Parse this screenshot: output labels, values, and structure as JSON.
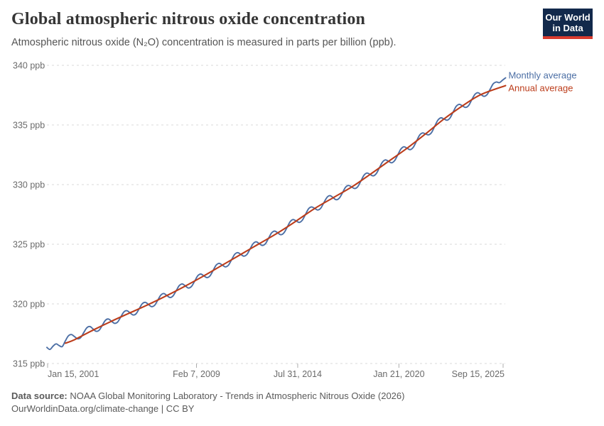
{
  "header": {
    "title": "Global atmospheric nitrous oxide concentration",
    "subtitle": "Atmospheric nitrous oxide (N₂O) concentration is measured in parts per billion (ppb).",
    "logo": {
      "line1": "Our World",
      "line2": "in Data",
      "bg_color": "#12294b",
      "accent_color": "#d93b2e"
    }
  },
  "chart_data": {
    "type": "line",
    "title": "Global atmospheric nitrous oxide concentration",
    "xlabel": "",
    "ylabel": "",
    "y_axis": {
      "unit": "ppb",
      "ticks": [
        315,
        320,
        325,
        330,
        335,
        340
      ],
      "tick_suffix": " ppb",
      "ylim": [
        315,
        340
      ],
      "grid": "dashed-horizontal"
    },
    "x_axis": {
      "ticks": [
        {
          "label": "Jan 15, 2001",
          "t": 2001.04,
          "align": "start"
        },
        {
          "label": "Feb 7, 2009",
          "t": 2009.1,
          "align": "middle"
        },
        {
          "label": "Jul 31, 2014",
          "t": 2014.58,
          "align": "middle"
        },
        {
          "label": "Jan 21, 2020",
          "t": 2020.06,
          "align": "middle"
        },
        {
          "label": "Sep 15, 2025",
          "t": 2025.7,
          "align": "end"
        }
      ],
      "xlim": [
        2001.0,
        2025.85
      ]
    },
    "legend_position": "right-of-line-ends",
    "series": [
      {
        "name": "Monthly average",
        "color": "#4c6fa5",
        "t_start": 2001.0,
        "t_step": 0.1666667,
        "values": [
          316.35,
          316.18,
          316.45,
          316.65,
          316.5,
          316.42,
          316.9,
          317.32,
          317.43,
          317.25,
          317.07,
          317.18,
          317.6,
          318.0,
          318.1,
          317.9,
          317.7,
          317.8,
          318.2,
          318.62,
          318.73,
          318.55,
          318.37,
          318.48,
          318.9,
          319.32,
          319.43,
          319.25,
          319.07,
          319.18,
          319.6,
          320.02,
          320.13,
          319.95,
          319.77,
          319.88,
          320.3,
          320.73,
          320.87,
          320.7,
          320.53,
          320.67,
          321.1,
          321.53,
          321.67,
          321.5,
          321.33,
          321.47,
          321.9,
          322.35,
          322.5,
          322.35,
          322.2,
          322.35,
          322.8,
          323.25,
          323.4,
          323.25,
          323.1,
          323.25,
          323.7,
          324.15,
          324.3,
          324.15,
          324.0,
          324.15,
          324.6,
          325.05,
          325.2,
          325.05,
          324.9,
          325.05,
          325.5,
          325.95,
          326.1,
          325.95,
          325.8,
          325.95,
          326.4,
          326.88,
          327.07,
          326.95,
          326.83,
          327.02,
          327.5,
          327.97,
          328.13,
          328.0,
          327.87,
          328.03,
          328.5,
          328.93,
          329.07,
          328.9,
          328.73,
          328.87,
          329.3,
          329.77,
          329.93,
          329.8,
          329.67,
          329.83,
          330.3,
          330.78,
          330.97,
          330.85,
          330.73,
          330.92,
          331.4,
          331.88,
          332.07,
          331.95,
          331.83,
          332.02,
          332.5,
          332.98,
          333.17,
          333.05,
          332.93,
          333.12,
          333.6,
          334.12,
          334.33,
          334.25,
          334.17,
          334.38,
          334.9,
          335.4,
          335.6,
          335.5,
          335.4,
          335.6,
          336.1,
          336.57,
          336.73,
          336.6,
          336.47,
          336.63,
          337.1,
          337.55,
          337.7,
          337.55,
          337.4,
          337.55,
          338.0,
          338.45,
          338.6,
          338.55,
          338.75,
          338.95
        ]
      },
      {
        "name": "Annual average",
        "color": "#bc3d1b",
        "points": [
          [
            2002.0,
            316.7
          ],
          [
            2002.5,
            317.0
          ],
          [
            2003.5,
            317.8
          ],
          [
            2004.5,
            318.55
          ],
          [
            2005.5,
            319.25
          ],
          [
            2006.5,
            319.95
          ],
          [
            2007.5,
            320.7
          ],
          [
            2008.5,
            321.5
          ],
          [
            2009.5,
            322.35
          ],
          [
            2010.5,
            323.25
          ],
          [
            2011.5,
            324.15
          ],
          [
            2012.5,
            325.05
          ],
          [
            2013.5,
            325.95
          ],
          [
            2014.5,
            326.95
          ],
          [
            2015.5,
            328.0
          ],
          [
            2016.5,
            328.9
          ],
          [
            2017.5,
            329.8
          ],
          [
            2018.5,
            330.85
          ],
          [
            2019.5,
            331.95
          ],
          [
            2020.5,
            333.05
          ],
          [
            2021.5,
            334.25
          ],
          [
            2022.5,
            335.5
          ],
          [
            2023.5,
            336.6
          ],
          [
            2024.5,
            337.55
          ],
          [
            2025.83,
            338.3
          ]
        ]
      }
    ]
  },
  "footer": {
    "source_label": "Data source:",
    "source_text": " NOAA Global Monitoring Laboratory - Trends in Atmospheric Nitrous Oxide (2026)",
    "note": "OurWorldinData.org/climate-change | CC BY"
  }
}
